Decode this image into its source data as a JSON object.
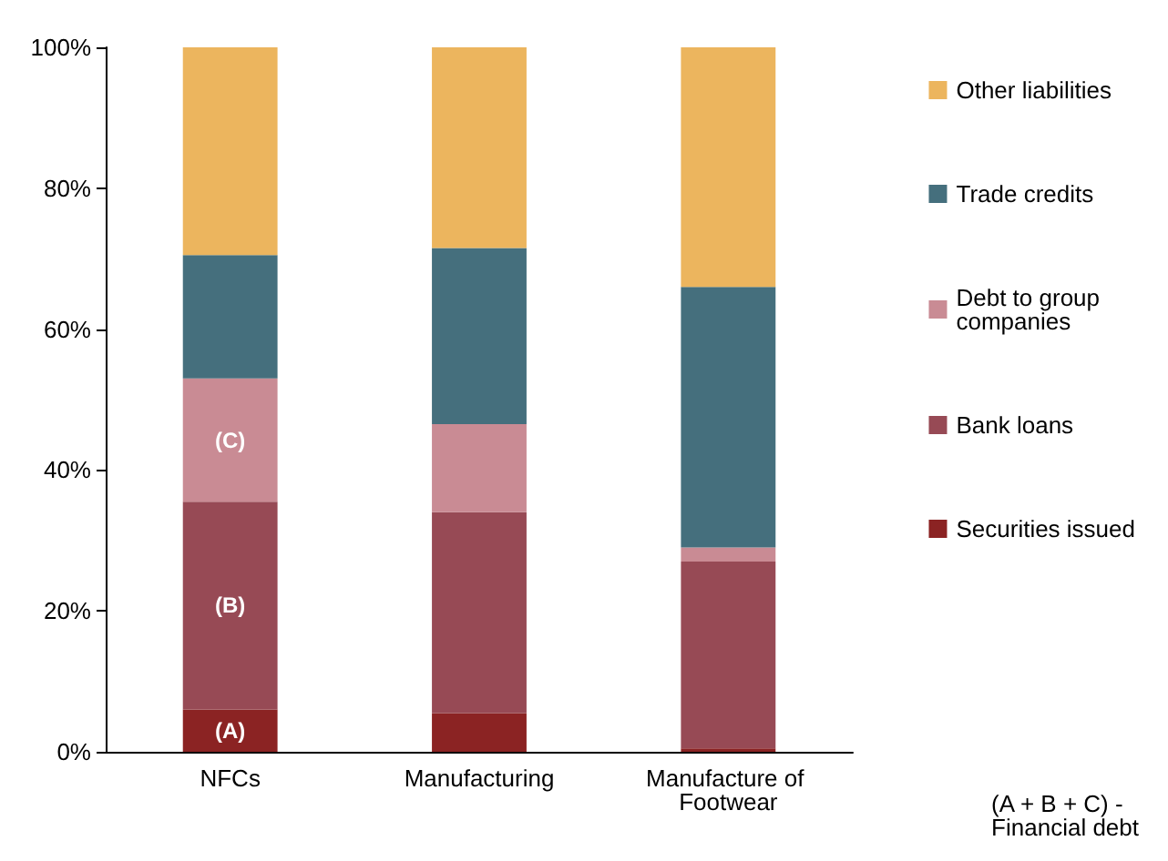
{
  "chart_data": {
    "type": "bar",
    "stacked": true,
    "categories": [
      "NFCs",
      "Manufacturing",
      "Manufacture of Footwear"
    ],
    "series": [
      {
        "name": "Securities issued",
        "color": "#8b2323",
        "values": [
          6,
          5.5,
          0.5
        ]
      },
      {
        "name": "Bank loans",
        "color": "#974a55",
        "values": [
          29.5,
          28.5,
          26.5
        ]
      },
      {
        "name": "Debt to group companies",
        "color": "#c98b94",
        "values": [
          17.5,
          12.5,
          2
        ]
      },
      {
        "name": "Trade credits",
        "color": "#456f7d",
        "values": [
          17.5,
          25,
          37
        ]
      },
      {
        "name": "Other liabilities",
        "color": "#ecb55e",
        "values": [
          29.5,
          28.5,
          34
        ]
      }
    ],
    "ylim": [
      0,
      100
    ],
    "yticks": [
      {
        "value": 0,
        "label": "0%"
      },
      {
        "value": 20,
        "label": "20%"
      },
      {
        "value": 40,
        "label": "40%"
      },
      {
        "value": 60,
        "label": "60%"
      },
      {
        "value": 80,
        "label": "80%"
      },
      {
        "value": 100,
        "label": "100%"
      }
    ],
    "grid": false,
    "legend": "right",
    "annotations": [
      "(A)",
      "(B)",
      "(C)",
      "(A + B + C) -\nFinancial debt"
    ]
  }
}
